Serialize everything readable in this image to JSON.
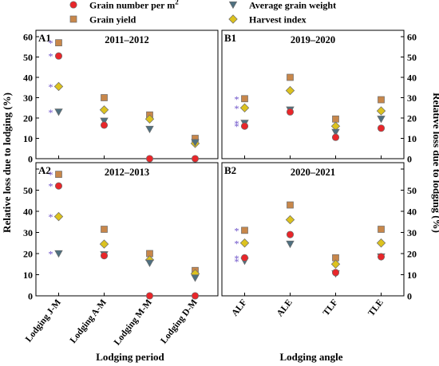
{
  "legend": {
    "items": [
      {
        "name": "Grain number per m",
        "sup": "2",
        "marker": "circle",
        "color": "#e8262a"
      },
      {
        "name": "Average grain weight",
        "marker": "triangle",
        "color": "#4e7080"
      },
      {
        "name": "Grain yield",
        "marker": "square",
        "color": "#c8874a"
      },
      {
        "name": "Harvest index",
        "marker": "diamond",
        "color": "#dcc21e"
      }
    ]
  },
  "axes": {
    "ylabel_left": "Relative  loss due to lodging (%)",
    "ylabel_right": "Relative  loss due to lodging (%)",
    "xlabel_left": "Lodging period",
    "xlabel_right": "Lodging angle"
  },
  "significance_mark": "*",
  "chart_data": [
    {
      "type": "scatter",
      "id": "A1",
      "title": "2011–2012",
      "categories": [
        "Lodging J-M",
        "Lodging A-M",
        "Lodging M-M",
        "Lodging D-M"
      ],
      "ylim": [
        0,
        60
      ],
      "yticks": [
        0,
        10,
        20,
        30,
        40,
        50,
        60
      ],
      "series": [
        {
          "name": "Grain number per m2",
          "values": [
            50.5,
            16.5,
            0,
            0
          ],
          "sig": [
            true,
            false,
            false,
            false
          ]
        },
        {
          "name": "Average grain weight",
          "values": [
            23,
            18.5,
            14.5,
            8
          ],
          "sig": [
            true,
            false,
            false,
            false
          ]
        },
        {
          "name": "Grain yield",
          "values": [
            57,
            30,
            21.5,
            10
          ],
          "sig": [
            true,
            false,
            false,
            false
          ]
        },
        {
          "name": "Harvest index",
          "values": [
            35.5,
            24,
            19.5,
            7.5
          ],
          "sig": [
            true,
            false,
            false,
            false
          ]
        }
      ]
    },
    {
      "type": "scatter",
      "id": "B1",
      "title": "2019–2020",
      "categories": [
        "ALF",
        "ALE",
        "TLF",
        "TLE"
      ],
      "ylim": [
        0,
        60
      ],
      "yticks": [
        0,
        10,
        20,
        30,
        40,
        50,
        60
      ],
      "series": [
        {
          "name": "Grain number per m2",
          "values": [
            16,
            23,
            10.5,
            15
          ],
          "sig": [
            true,
            false,
            false,
            false
          ]
        },
        {
          "name": "Average grain weight",
          "values": [
            17.5,
            24,
            13,
            19.5
          ],
          "sig": [
            true,
            false,
            false,
            false
          ]
        },
        {
          "name": "Grain yield",
          "values": [
            29.5,
            40,
            19.5,
            29
          ],
          "sig": [
            true,
            false,
            false,
            false
          ]
        },
        {
          "name": "Harvest index",
          "values": [
            25,
            33.5,
            16,
            23.5
          ],
          "sig": [
            true,
            false,
            false,
            false
          ]
        }
      ]
    },
    {
      "type": "scatter",
      "id": "A2",
      "title": "2012–2013",
      "categories": [
        "Lodging J-M",
        "Lodging A-M",
        "Lodging M-M",
        "Lodging D-M"
      ],
      "ylim": [
        0,
        60
      ],
      "yticks": [
        0,
        10,
        20,
        30,
        40,
        50,
        60
      ],
      "series": [
        {
          "name": "Grain number per m2",
          "values": [
            52,
            19,
            0,
            0
          ],
          "sig": [
            true,
            false,
            false,
            false
          ]
        },
        {
          "name": "Average grain weight",
          "values": [
            20,
            19.5,
            15.5,
            8.5
          ],
          "sig": [
            true,
            false,
            false,
            false
          ]
        },
        {
          "name": "Grain yield",
          "values": [
            57.5,
            31.5,
            20,
            12
          ],
          "sig": [
            true,
            false,
            false,
            false
          ]
        },
        {
          "name": "Harvest index",
          "values": [
            37.5,
            24.5,
            17,
            10.5
          ],
          "sig": [
            true,
            false,
            false,
            false
          ]
        }
      ]
    },
    {
      "type": "scatter",
      "id": "B2",
      "title": "2020–2021",
      "categories": [
        "ALF",
        "ALE",
        "TLF",
        "TLE"
      ],
      "ylim": [
        0,
        60
      ],
      "yticks": [
        0,
        10,
        20,
        30,
        40,
        50,
        60
      ],
      "series": [
        {
          "name": "Grain number per m2",
          "values": [
            18,
            29,
            11,
            18.5
          ],
          "sig": [
            true,
            false,
            false,
            false
          ]
        },
        {
          "name": "Average grain weight",
          "values": [
            16.5,
            24.5,
            10.5,
            18.5
          ],
          "sig": [
            true,
            false,
            false,
            false
          ]
        },
        {
          "name": "Grain yield",
          "values": [
            31,
            43,
            18,
            31.5
          ],
          "sig": [
            true,
            false,
            false,
            false
          ]
        },
        {
          "name": "Harvest index",
          "values": [
            25,
            36,
            15,
            25
          ],
          "sig": [
            true,
            false,
            false,
            false
          ]
        }
      ]
    }
  ]
}
